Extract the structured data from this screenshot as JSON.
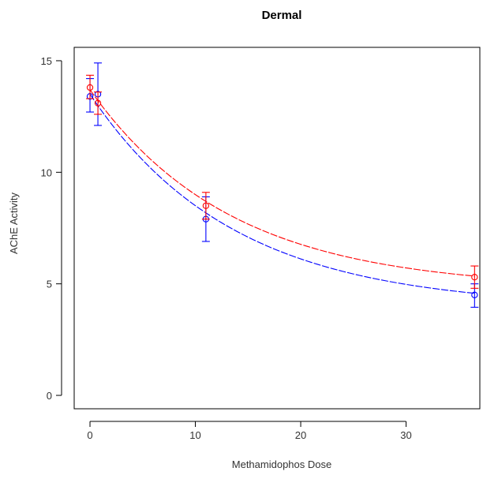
{
  "chart_data": {
    "type": "scatter",
    "title": "Dermal",
    "xlabel": "Methamidophos Dose",
    "ylabel": "AChE Activity",
    "xlim": [
      -1.5,
      37
    ],
    "ylim": [
      -0.6,
      15.6
    ],
    "xticks": [
      0,
      10,
      20,
      30
    ],
    "yticks": [
      0,
      5,
      10,
      15
    ],
    "grid": false,
    "series": [
      {
        "color": "#0000ff",
        "line_style": "dashed",
        "points": [
          {
            "x": 0,
            "y": 13.4,
            "lo": 12.7,
            "hi": 14.2
          },
          {
            "x": 0.75,
            "y": 13.5,
            "lo": 12.1,
            "hi": 14.9
          },
          {
            "x": 11,
            "y": 7.9,
            "lo": 6.9,
            "hi": 8.9
          },
          {
            "x": 36.5,
            "y": 4.5,
            "lo": 3.95,
            "hi": 5.0
          }
        ],
        "curve": {
          "plateau": 3.93,
          "span": 9.57,
          "rate": 0.0738,
          "x_start": 0,
          "x_end": 36.5
        }
      },
      {
        "color": "#ff0000",
        "line_style": "dashed",
        "points": [
          {
            "x": 0,
            "y": 13.8,
            "lo": 13.3,
            "hi": 14.35
          },
          {
            "x": 0.75,
            "y": 13.1,
            "lo": 12.6,
            "hi": 13.6
          },
          {
            "x": 11,
            "y": 8.5,
            "lo": 7.9,
            "hi": 9.1
          },
          {
            "x": 36.5,
            "y": 5.3,
            "lo": 4.8,
            "hi": 5.8
          }
        ],
        "curve": {
          "plateau": 4.76,
          "span": 8.94,
          "rate": 0.0746,
          "x_start": 0,
          "x_end": 36.5
        }
      }
    ]
  }
}
